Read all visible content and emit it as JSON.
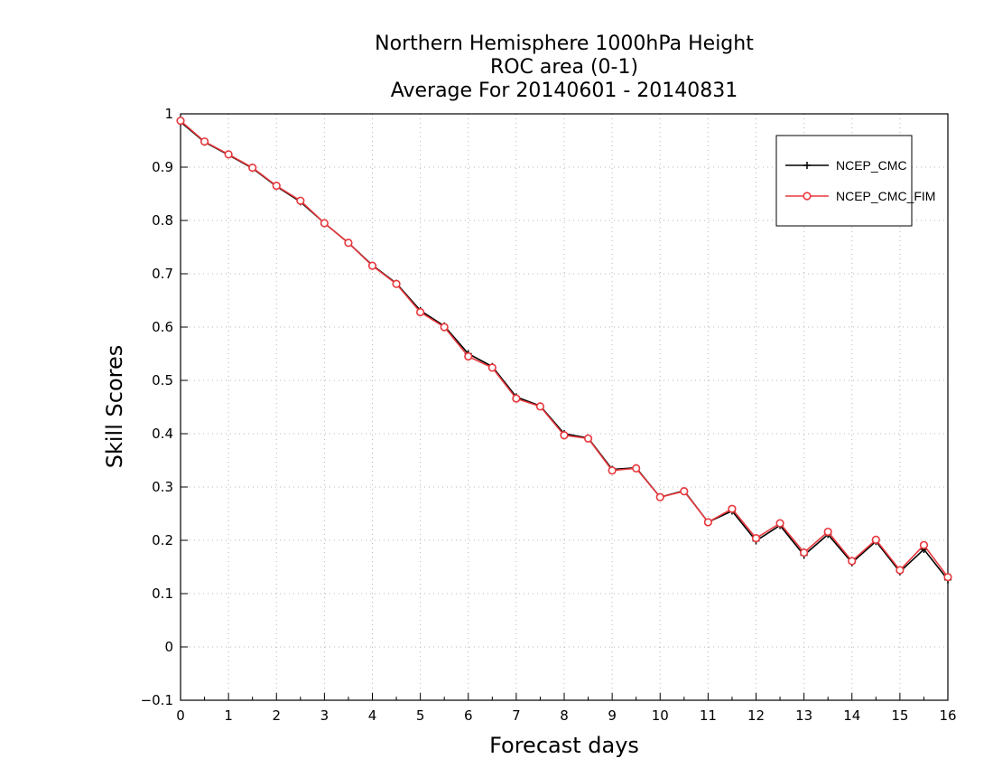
{
  "chart_data": {
    "type": "line",
    "title_lines": [
      "Northern Hemisphere 1000hPa Height",
      "ROC area (0-1)",
      "Average For 20140601 - 20140831"
    ],
    "xlabel": "Forecast days",
    "ylabel": "Skill Scores",
    "xlim": [
      0,
      16
    ],
    "ylim": [
      -0.1,
      1
    ],
    "xticks": [
      0,
      1,
      2,
      3,
      4,
      5,
      6,
      7,
      8,
      9,
      10,
      11,
      12,
      13,
      14,
      15,
      16
    ],
    "xtick_labels": [
      "0",
      "1",
      "2",
      "3",
      "4",
      "5",
      "6",
      "7",
      "8",
      "9",
      "10",
      "11",
      "12",
      "13",
      "14",
      "15",
      "16"
    ],
    "yticks": [
      -0.1,
      0,
      0.1,
      0.2,
      0.3,
      0.4,
      0.5,
      0.6,
      0.7,
      0.8,
      0.9,
      1
    ],
    "ytick_labels": [
      "−0.1",
      "0",
      "0.1",
      "0.2",
      "0.3",
      "0.4",
      "0.5",
      "0.6",
      "0.7",
      "0.8",
      "0.9",
      "1"
    ],
    "grid": true,
    "legend_position": "top-right",
    "x": [
      0,
      0.5,
      1,
      1.5,
      2,
      2.5,
      3,
      3.5,
      4,
      4.5,
      5,
      5.5,
      6,
      6.5,
      7,
      7.5,
      8,
      8.5,
      9,
      9.5,
      10,
      10.5,
      11,
      11.5,
      12,
      12.5,
      13,
      13.5,
      14,
      14.5,
      15,
      15.5,
      16
    ],
    "series": [
      {
        "name": "NCEP_CMC",
        "color": "#000000",
        "marker": "plus",
        "values": [
          0.985,
          0.947,
          0.923,
          0.898,
          0.864,
          0.835,
          0.795,
          0.758,
          0.716,
          0.682,
          0.631,
          0.602,
          0.55,
          0.526,
          0.469,
          0.452,
          0.4,
          0.392,
          0.333,
          0.336,
          0.281,
          0.293,
          0.234,
          0.255,
          0.199,
          0.228,
          0.172,
          0.211,
          0.158,
          0.198,
          0.141,
          0.183,
          0.126
        ]
      },
      {
        "name": "NCEP_CMC_FIM",
        "color": "#e8383d",
        "marker": "circle",
        "values": [
          0.987,
          0.948,
          0.924,
          0.899,
          0.865,
          0.837,
          0.795,
          0.758,
          0.715,
          0.681,
          0.628,
          0.6,
          0.545,
          0.524,
          0.466,
          0.451,
          0.397,
          0.391,
          0.331,
          0.335,
          0.281,
          0.292,
          0.234,
          0.259,
          0.204,
          0.232,
          0.177,
          0.216,
          0.161,
          0.201,
          0.144,
          0.191,
          0.131
        ]
      }
    ]
  }
}
